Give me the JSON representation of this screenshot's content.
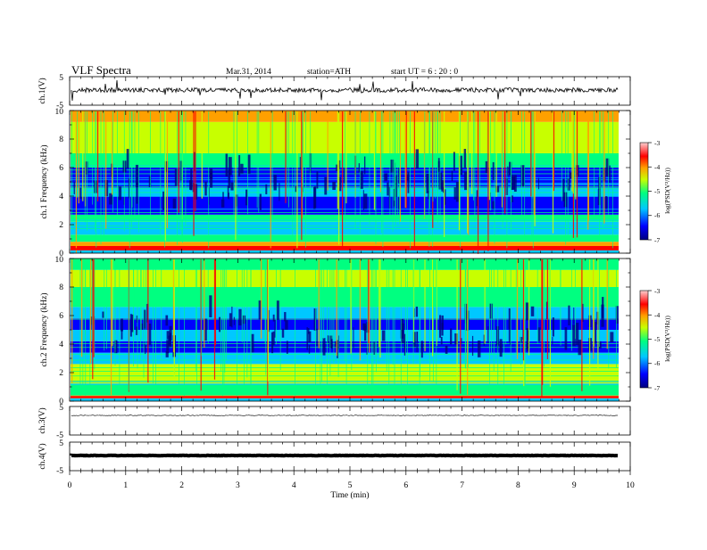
{
  "header": {
    "title": "VLF  Spectra",
    "date": "Mar.31, 2014",
    "station": "station=ATH",
    "start": "start  UT  =   6  : 20 : 0"
  },
  "colors": {
    "colormap": [
      "#000080",
      "#0000ff",
      "#00c8ff",
      "#00ff80",
      "#c8ff00",
      "#ffa000",
      "#ff0000",
      "#ffc8c8"
    ],
    "trace": "#000000",
    "axis": "#000000"
  },
  "chart_data": [
    {
      "type": "line",
      "panel": "ch1-waveform",
      "ylabel": "ch.1(V)",
      "ylim": [
        -5,
        5
      ],
      "y_ticks": [
        "5",
        "-5"
      ],
      "description_values": {
        "baseline": 0,
        "typical_range": [
          -1,
          1
        ]
      }
    },
    {
      "type": "heatmap",
      "panel": "ch1-spectrogram",
      "ylabel": "ch.1 Frequency (kHz)",
      "ylim": [
        0,
        10
      ],
      "y_ticks": [
        "0",
        "2",
        "4",
        "6",
        "8",
        "10"
      ],
      "colorbar": {
        "label": "log(PSD(V²/Hz))",
        "ticks": [
          "-3",
          "-4",
          "-5",
          "-6",
          "-7"
        ],
        "range": [
          -7,
          -3
        ]
      }
    },
    {
      "type": "heatmap",
      "panel": "ch2-spectrogram",
      "ylabel": "ch.2 Frequency (kHz)",
      "ylim": [
        0,
        10
      ],
      "y_ticks": [
        "0",
        "2",
        "4",
        "6",
        "8",
        "10"
      ],
      "colorbar": {
        "label": "log(PSD(V²/Hz))",
        "ticks": [
          "-3",
          "-4",
          "-5",
          "-6",
          "-7"
        ],
        "range": [
          -7,
          -3
        ]
      }
    },
    {
      "type": "line",
      "panel": "ch3-waveform",
      "ylabel": "ch.3(V)",
      "ylim": [
        -5,
        5
      ],
      "y_ticks": [
        "5",
        "-5"
      ],
      "description_values": {
        "baseline": 0
      }
    },
    {
      "type": "line",
      "panel": "ch4-waveform",
      "ylabel": "ch.4(V)",
      "ylim": [
        -5,
        5
      ],
      "y_ticks": [
        "5",
        "-5"
      ],
      "description_values": {
        "baseline": 0
      }
    }
  ],
  "x_axis": {
    "label": "Time  (min)",
    "ticks": [
      "0",
      "1",
      "2",
      "3",
      "4",
      "5",
      "6",
      "7",
      "8",
      "9",
      "10"
    ],
    "xlim": [
      0,
      10
    ]
  }
}
